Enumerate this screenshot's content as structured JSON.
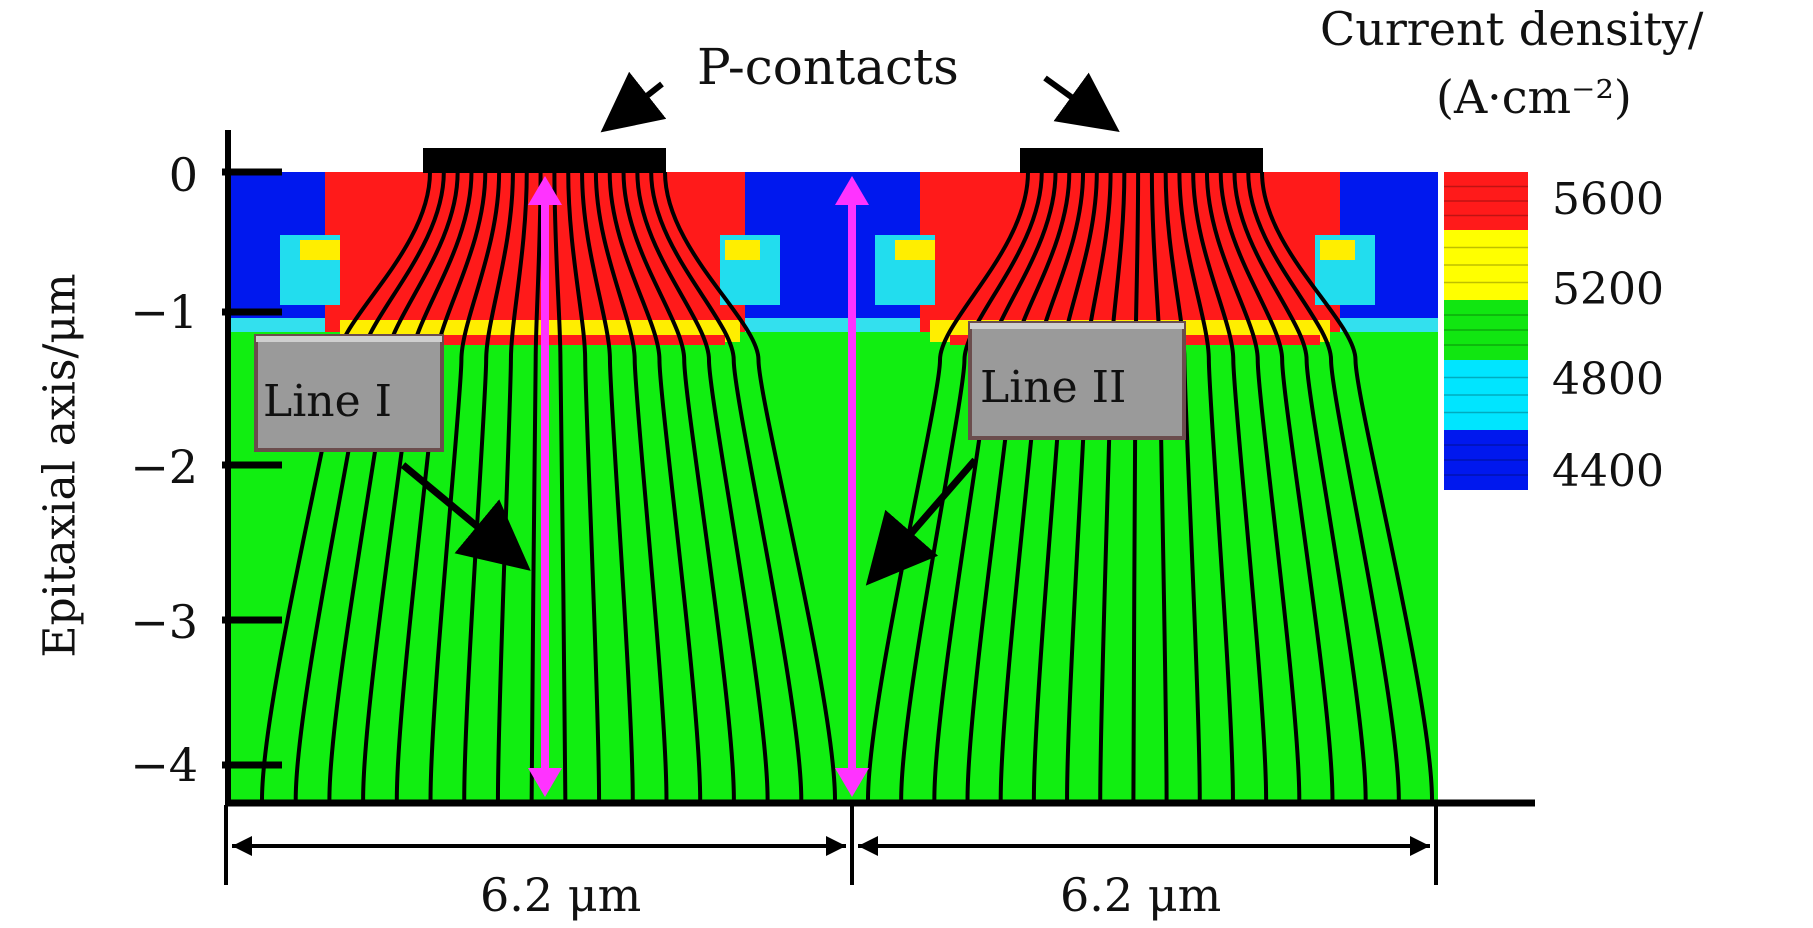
{
  "title": {
    "line1": "Current density/",
    "line2": "(A·cm⁻²)"
  },
  "contacts_label": "P-contacts",
  "y_axis": {
    "label": "Epitaxial axis/μm",
    "ticks": [
      "0",
      "−1",
      "−2",
      "−3",
      "−4"
    ]
  },
  "colorbar": {
    "ticks": [
      "5600",
      "5200",
      "4800",
      "4400"
    ],
    "colors": [
      "#ff1a1a",
      "#ffff00",
      "#11e611",
      "#00e5ff",
      "#0018ee"
    ]
  },
  "lines": [
    {
      "label": "Line I"
    },
    {
      "label": "Line II"
    }
  ],
  "widths": [
    "6.2 μm",
    "6.2 μm"
  ],
  "colors": {
    "blue": "#0018ee",
    "red": "#ff1a1a",
    "green": "#11ee11",
    "yellow": "#ffee00",
    "cyan": "#33e0ee",
    "magenta": "#ff33ff",
    "label_box": "#999999"
  }
}
